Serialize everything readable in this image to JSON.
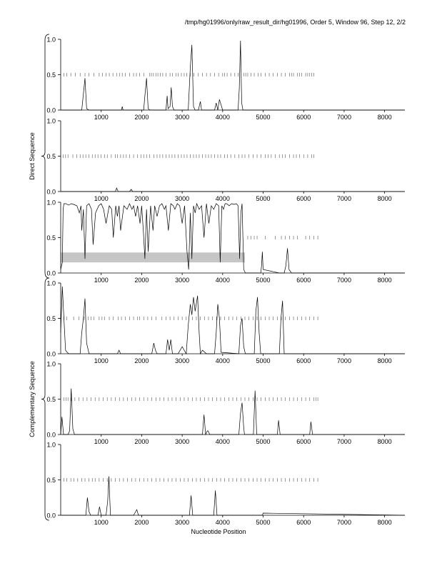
{
  "header": "/tmp/hg01996/only/raw_result_dir/hg01996, Order 5, Window 96, Step 12, 2/2",
  "xlabel": "Nucleotide Position",
  "groups": [
    {
      "label": "Direct Sequence",
      "panels": [
        0,
        1,
        2
      ]
    },
    {
      "label": "Complementary Sequence",
      "panels": [
        3,
        4,
        5
      ]
    }
  ],
  "chart_data": [
    {
      "type": "line",
      "xlim": [
        0,
        8500
      ],
      "ylim": [
        0,
        1
      ],
      "xticks": [
        1000,
        2000,
        3000,
        4000,
        5000,
        6000,
        7000,
        8000
      ],
      "yticks": [
        "0.0",
        "0.5",
        "1.0"
      ],
      "ticks_y": 0.5,
      "ticks": [
        80,
        150,
        250,
        360,
        480,
        600,
        700,
        820,
        950,
        1030,
        1120,
        1200,
        1290,
        1380,
        1450,
        1520,
        1600,
        1700,
        1800,
        1870,
        1950,
        2050,
        2200,
        2240,
        2290,
        2350,
        2400,
        2460,
        2520,
        2600,
        2700,
        2760,
        2850,
        2900,
        2980,
        3050,
        3110,
        3200,
        3290,
        3400,
        3500,
        3600,
        3700,
        3800,
        3900,
        4000,
        4050,
        4110,
        4200,
        4300,
        4380,
        4520,
        4570,
        4620,
        4700,
        4780,
        4880,
        4950,
        5050,
        5150,
        5250,
        5350,
        5450,
        5550,
        5650,
        5700,
        5750,
        5850,
        5900,
        5950,
        6050,
        6100,
        6150,
        6200,
        6250
      ],
      "series": [
        {
          "x": [
            0,
            520,
            600,
            640,
            700,
            1500,
            1520,
            1540,
            2050,
            2080,
            2120,
            2160,
            2200,
            2600,
            2630,
            2650,
            2700,
            2730,
            2760,
            2800,
            2950,
            3150,
            3200,
            3240,
            3280,
            3320,
            3400,
            3450,
            3480,
            3800,
            3840,
            3880,
            3920,
            4000,
            4380,
            4410,
            4440,
            4470,
            4500,
            8500
          ],
          "y": [
            0,
            0,
            0.45,
            0.02,
            0,
            0,
            0.05,
            0,
            0,
            0.2,
            0.45,
            0.02,
            0,
            0,
            0.2,
            0.02,
            0.05,
            0.32,
            0.05,
            0,
            0,
            0,
            0.6,
            0.92,
            0.05,
            0,
            0,
            0.12,
            0,
            0,
            0.1,
            0,
            0.15,
            0,
            0,
            0.3,
            0.98,
            0.1,
            0,
            0
          ]
        }
      ],
      "band": null
    },
    {
      "type": "line",
      "xlim": [
        0,
        8500
      ],
      "ylim": [
        0,
        1
      ],
      "xticks": [
        1000,
        2000,
        3000,
        4000,
        5000,
        6000,
        7000,
        8000
      ],
      "yticks": [
        "0.0",
        "0.5",
        "1.0"
      ],
      "ticks_y": 0.5,
      "ticks": [
        60,
        120,
        180,
        300,
        400,
        480,
        550,
        620,
        700,
        780,
        850,
        920,
        1000,
        1080,
        1150,
        1250,
        1350,
        1400,
        1480,
        1550,
        1620,
        1700,
        1800,
        1900,
        1980,
        2050,
        2120,
        2200,
        2300,
        2380,
        2450,
        2520,
        2600,
        2680,
        2750,
        2820,
        2900,
        2980,
        3050,
        3120,
        3200,
        3280,
        3350,
        3420,
        3500,
        3580,
        3650,
        3720,
        3800,
        3880,
        3950,
        4050,
        4120,
        4200,
        4300,
        4400,
        4480,
        4550,
        4650,
        4750,
        4850,
        4950,
        5050,
        5120,
        5200,
        5300,
        5400,
        5480,
        5550,
        5650,
        5750,
        5820,
        5900,
        6000,
        6100,
        6200,
        6250
      ],
      "series": [
        {
          "x": [
            0,
            1350,
            1380,
            1420,
            1700,
            1740,
            1780,
            8500
          ],
          "y": [
            0,
            0,
            0.05,
            0,
            0,
            0.03,
            0,
            0
          ]
        }
      ],
      "band": null
    },
    {
      "type": "line",
      "xlim": [
        0,
        8500
      ],
      "ylim": [
        0,
        1
      ],
      "xticks": [
        1000,
        2000,
        3000,
        4000,
        5000,
        6000,
        7000,
        8000
      ],
      "yticks": [
        "0.0",
        "0.5",
        "1.0"
      ],
      "ticks_y": 0.5,
      "ticks": [
        4620,
        4700,
        4780,
        4850,
        5050,
        5300,
        5450,
        5550,
        5650,
        5750,
        5850,
        6050,
        6150,
        6250,
        6350
      ],
      "series": [
        {
          "x": [
            0,
            40,
            60,
            80,
            100,
            130,
            160,
            200,
            260,
            320,
            400,
            460,
            500,
            520,
            560,
            600,
            640,
            700,
            760,
            800,
            860,
            940,
            1000,
            1060,
            1120,
            1200,
            1260,
            1300,
            1360,
            1400,
            1440,
            1480,
            1560,
            1640,
            1700,
            1760,
            1800,
            1850,
            1900,
            1960,
            2000,
            2040,
            2080,
            2120,
            2160,
            2220,
            2280,
            2320,
            2380,
            2440,
            2500,
            2560,
            2600,
            2660,
            2720,
            2780,
            2820,
            2880,
            2940,
            3000,
            3060,
            3120,
            3160,
            3200,
            3240,
            3280,
            3320,
            3360,
            3420,
            3480,
            3540,
            3600,
            3660,
            3720,
            3780,
            3840,
            3900,
            3940,
            3980,
            4020,
            4060,
            4100,
            4160,
            4220,
            4280,
            4340,
            4380,
            4420,
            4450,
            4480,
            4500,
            4520,
            4560,
            4900,
            4940,
            4960,
            4980,
            5000,
            5400,
            5520,
            5560,
            5600,
            5640,
            5700,
            8500
          ],
          "y": [
            0.05,
            0.15,
            0.9,
            0.98,
            0.98,
            0.98,
            0.97,
            0.96,
            0.98,
            0.97,
            0.95,
            0.85,
            0.95,
            0.6,
            0.9,
            0.2,
            0.95,
            0.98,
            0.9,
            0.4,
            0.85,
            0.95,
            0.98,
            0.9,
            0.7,
            0.95,
            0.9,
            0.5,
            0.95,
            0.8,
            0.95,
            0.6,
            0.95,
            0.9,
            0.98,
            0.9,
            0.95,
            0.8,
            0.95,
            0.7,
            0.95,
            0.6,
            0.2,
            0.9,
            0.3,
            0.95,
            0.6,
            0.95,
            0.8,
            0.95,
            0.98,
            0.9,
            0.95,
            0.6,
            0.98,
            0.95,
            0.9,
            0.98,
            0.95,
            0.7,
            0.95,
            0.3,
            0.05,
            0.85,
            0.2,
            0.95,
            0.85,
            0.98,
            0.9,
            0.95,
            0.5,
            0.98,
            0.7,
            0.95,
            0.9,
            0.98,
            0.95,
            0.15,
            0.95,
            0.9,
            0.98,
            0.98,
            0.95,
            0.98,
            0.97,
            0.98,
            0.95,
            0.2,
            0.85,
            0.98,
            0.5,
            0.05,
            0,
            0,
            0,
            0.1,
            0.3,
            0.05,
            0,
            0,
            0.1,
            0.35,
            0.05,
            0,
            0
          ]
        }
      ],
      "band": {
        "x0": 0,
        "x1": 4550,
        "y0": 0.15,
        "y1": 0.29
      }
    },
    {
      "type": "line",
      "xlim": [
        0,
        8500
      ],
      "ylim": [
        0,
        1
      ],
      "xticks": [
        1000,
        2000,
        3000,
        4000,
        5000,
        6000,
        7000,
        8000
      ],
      "yticks": [
        "0.0",
        "0.5",
        "1.0"
      ],
      "ticks_y": 0.5,
      "ticks": [
        80,
        150,
        320,
        450,
        580,
        680,
        750,
        820,
        950,
        1020,
        1080,
        1200,
        1300,
        1420,
        1500,
        1600,
        1700,
        1800,
        1900,
        1950,
        2050,
        2150,
        2250,
        2350,
        2500,
        2600,
        2700,
        2800,
        2900,
        3000,
        3100,
        3250,
        3350,
        3450,
        3550,
        3650,
        3750,
        3850,
        3950,
        4050,
        4150,
        4250,
        4350,
        4450,
        4550,
        4650,
        4750,
        4850,
        4950,
        5050,
        5150,
        5250,
        5350,
        5450,
        5550,
        5650,
        5750,
        5850,
        5950,
        6050,
        6150,
        6250,
        6350
      ],
      "series": [
        {
          "x": [
            0,
            40,
            80,
            120,
            160,
            200,
            480,
            520,
            560,
            600,
            640,
            700,
            1400,
            1440,
            1480,
            2250,
            2300,
            2340,
            2380,
            2600,
            2640,
            2680,
            2720,
            2760,
            2900,
            3000,
            3100,
            3150,
            3200,
            3240,
            3280,
            3320,
            3380,
            3420,
            3450,
            3500,
            3600,
            3800,
            3840,
            3880,
            3920,
            3960,
            4400,
            4440,
            4480,
            4520,
            4560,
            4780,
            4820,
            4860,
            4900,
            4940,
            5400,
            5440,
            5480,
            5520,
            8500
          ],
          "y": [
            0.3,
            0.95,
            0.5,
            0.05,
            0.02,
            0,
            0,
            0.3,
            0.5,
            0.78,
            0.15,
            0,
            0,
            0.05,
            0,
            0,
            0.15,
            0.05,
            0,
            0,
            0.2,
            0.05,
            0.2,
            0,
            0,
            0.1,
            0,
            0.4,
            0.7,
            0.55,
            0.8,
            0.6,
            0.82,
            0.3,
            0,
            0.05,
            0,
            0,
            0.3,
            0.7,
            0.5,
            0.02,
            0,
            0.4,
            0.5,
            0.1,
            0,
            0,
            0.6,
            0.8,
            0.3,
            0,
            0,
            0.5,
            0.75,
            0,
            0
          ]
        }
      ],
      "band": null
    },
    {
      "type": "line",
      "xlim": [
        0,
        8500
      ],
      "ylim": [
        0,
        1
      ],
      "xticks": [
        1000,
        2000,
        3000,
        4000,
        5000,
        6000,
        7000,
        8000
      ],
      "yticks": [
        "0.0",
        "0.5",
        "1.0"
      ],
      "ticks_y": 0.5,
      "ticks": [
        80,
        130,
        180,
        260,
        350,
        450,
        550,
        650,
        750,
        850,
        950,
        1050,
        1150,
        1250,
        1350,
        1450,
        1550,
        1650,
        1750,
        1850,
        1950,
        2050,
        2150,
        2250,
        2350,
        2450,
        2550,
        2650,
        2750,
        2850,
        2950,
        3050,
        3150,
        3250,
        3350,
        3450,
        3550,
        3650,
        3750,
        3850,
        3950,
        4050,
        4150,
        4250,
        4350,
        4450,
        4550,
        4650,
        4750,
        4850,
        4950,
        5050,
        5150,
        5250,
        5350,
        5450,
        5550,
        5650,
        5750,
        5850,
        5950,
        6050,
        6150,
        6250,
        6300,
        6350
      ],
      "series": [
        {
          "x": [
            0,
            30,
            70,
            120,
            180,
            220,
            260,
            300,
            340,
            500,
            3500,
            3540,
            3580,
            3620,
            3640,
            3680,
            3700,
            4400,
            4440,
            4480,
            4520,
            4540,
            4760,
            4800,
            4840,
            5350,
            5380,
            5420,
            6150,
            6180,
            6220,
            8500
          ],
          "y": [
            0,
            0.25,
            0,
            0,
            0,
            0.05,
            0.65,
            0.08,
            0,
            0,
            0,
            0.28,
            0,
            0.05,
            0.05,
            0,
            0,
            0,
            0.3,
            0.45,
            0.1,
            0,
            0,
            0.62,
            0,
            0,
            0.2,
            0,
            0,
            0.18,
            0,
            0
          ]
        }
      ],
      "band": null
    },
    {
      "type": "line",
      "xlim": [
        0,
        8500
      ],
      "ylim": [
        0,
        1
      ],
      "xticks": [
        1000,
        2000,
        3000,
        4000,
        5000,
        6000,
        7000,
        8000
      ],
      "yticks": [
        "0.0",
        "0.5",
        "1.0"
      ],
      "ticks_y": 0.5,
      "ticks": [
        80,
        150,
        250,
        330,
        420,
        520,
        600,
        700,
        780,
        850,
        950,
        1050,
        1150,
        1250,
        1350,
        1450,
        1550,
        1650,
        1750,
        1850,
        1950,
        2050,
        2150,
        2250,
        2350,
        2450,
        2550,
        2650,
        2750,
        2850,
        2950,
        3050,
        3150,
        3250,
        3350,
        3450,
        3550,
        3650,
        3750,
        3850,
        3950,
        4050,
        4150,
        4250,
        4350,
        4450,
        4550,
        4650,
        4750,
        4850,
        4950,
        5050,
        5150,
        5250,
        5350,
        5450,
        5550,
        5650,
        5750,
        5850,
        5950,
        6050,
        6150,
        6250,
        6350
      ],
      "series": [
        {
          "x": [
            0,
            620,
            660,
            700,
            740,
            920,
            960,
            1000,
            1120,
            1160,
            1190,
            1230,
            1800,
            1880,
            1920,
            3180,
            3220,
            3260,
            3780,
            3820,
            3860,
            4980,
            5000,
            8500
          ],
          "y": [
            0,
            0,
            0.25,
            0.05,
            0,
            0,
            0.12,
            0,
            0,
            0.2,
            0.55,
            0,
            0,
            0.08,
            0,
            0,
            0.28,
            0,
            0,
            0.35,
            0,
            0,
            0.03,
            0
          ]
        }
      ],
      "band": null
    }
  ]
}
